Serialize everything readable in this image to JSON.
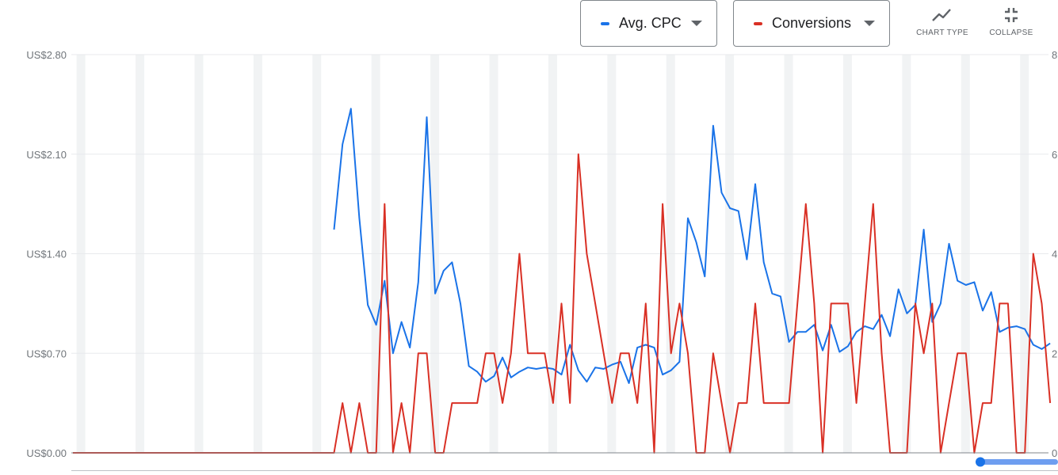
{
  "controls": {
    "metric1": {
      "label": "Avg. CPC",
      "color": "#1a73e8"
    },
    "metric2": {
      "label": "Conversions",
      "color": "#d93025"
    },
    "chart_type_label": "CHART TYPE",
    "collapse_label": "COLLAPSE"
  },
  "chart_data": {
    "type": "line",
    "y_left": {
      "ticks": [
        "US$0.00",
        "US$0.70",
        "US$1.40",
        "US$2.10",
        "US$2.80"
      ],
      "range": [
        0,
        2.8
      ]
    },
    "y_right": {
      "ticks": [
        "0",
        "2",
        "4",
        "6",
        "8"
      ],
      "range": [
        0,
        8
      ]
    },
    "grid": true,
    "weekend_bands": true,
    "series": [
      {
        "name": "Avg. CPC",
        "axis": "left",
        "color": "#1a73e8",
        "values": [
          null,
          null,
          null,
          null,
          null,
          null,
          null,
          null,
          null,
          null,
          null,
          null,
          null,
          null,
          null,
          null,
          null,
          null,
          null,
          null,
          null,
          null,
          null,
          null,
          null,
          null,
          null,
          null,
          null,
          null,
          null,
          1.57,
          2.17,
          2.42,
          1.65,
          1.04,
          0.9,
          1.21,
          0.7,
          0.92,
          0.74,
          1.2,
          2.36,
          1.12,
          1.28,
          1.34,
          1.05,
          0.61,
          0.57,
          0.5,
          0.54,
          0.67,
          0.53,
          0.57,
          0.6,
          0.59,
          0.6,
          0.59,
          0.55,
          0.76,
          0.58,
          0.5,
          0.6,
          0.59,
          0.62,
          0.64,
          0.49,
          0.74,
          0.76,
          0.74,
          0.55,
          0.58,
          0.64,
          1.65,
          1.48,
          1.24,
          2.3,
          1.83,
          1.72,
          1.7,
          1.36,
          1.89,
          1.34,
          1.12,
          1.1,
          0.78,
          0.85,
          0.85,
          0.9,
          0.72,
          0.9,
          0.71,
          0.75,
          0.85,
          0.89,
          0.87,
          0.97,
          0.82,
          1.15,
          0.98,
          1.04,
          1.57,
          0.92,
          1.05,
          1.47,
          1.21,
          1.18,
          1.2,
          1.0,
          1.13,
          0.85,
          0.88,
          0.89,
          0.87,
          0.76,
          0.73,
          0.77
        ]
      },
      {
        "name": "Conversions",
        "axis": "right",
        "color": "#d93025",
        "values": [
          0,
          0,
          0,
          0,
          0,
          0,
          0,
          0,
          0,
          0,
          0,
          0,
          0,
          0,
          0,
          0,
          0,
          0,
          0,
          0,
          0,
          0,
          0,
          0,
          0,
          0,
          0,
          0,
          0,
          0,
          0,
          0,
          1,
          0,
          1,
          0,
          0,
          5,
          0,
          1,
          0,
          2,
          2,
          0,
          0,
          1,
          1,
          1,
          1,
          2,
          2,
          1,
          2,
          4,
          2,
          2,
          2,
          1,
          3,
          1,
          6,
          4,
          3,
          2,
          1,
          2,
          2,
          1,
          3,
          0,
          5,
          2,
          3,
          2,
          0,
          0,
          2,
          1,
          0,
          1,
          1,
          3,
          1,
          1,
          1,
          1,
          3,
          5,
          3,
          0,
          3,
          3,
          3,
          1,
          3,
          5,
          2,
          0,
          0,
          0,
          3,
          2,
          3,
          0,
          1,
          2,
          2,
          0,
          1,
          1,
          3,
          3,
          0,
          0,
          4,
          3,
          1
        ]
      }
    ]
  }
}
